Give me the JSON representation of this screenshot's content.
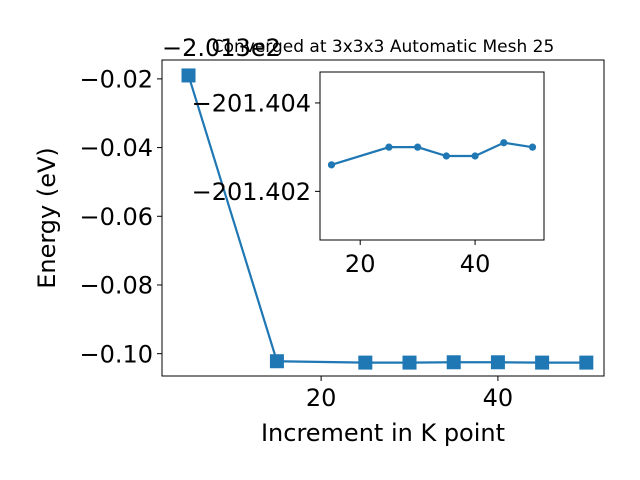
{
  "chart_data": [
    {
      "type": "line",
      "title": "Converged at 3x3x3 Automatic Mesh 25",
      "xlabel": "Increment in K point",
      "ylabel": "Energy (eV)",
      "offset_text": "−2.013e2",
      "xlim": [
        2,
        52
      ],
      "ylim": [
        -0.1065,
        -0.0145
      ],
      "xticks": [
        20,
        40
      ],
      "xtick_labels": [
        "20",
        "40"
      ],
      "yticks": [
        -0.1,
        -0.08,
        -0.06,
        -0.04,
        -0.02
      ],
      "ytick_labels": [
        "−0.10",
        "−0.08",
        "−0.06",
        "−0.04",
        "−0.02"
      ],
      "marker": "square",
      "color": "#1f77b4",
      "grid": false,
      "series": [
        {
          "x": [
            5,
            15,
            25,
            30,
            35,
            40,
            45,
            50
          ],
          "y": [
            -0.019,
            -0.1022,
            -0.1026,
            -0.1026,
            -0.1025,
            -0.1025,
            -0.1026,
            -0.1026
          ]
        }
      ]
    },
    {
      "type": "line",
      "title": "",
      "xlim": [
        13,
        52
      ],
      "ylim": [
        -201.4009,
        -201.4047
      ],
      "xticks": [
        20,
        40
      ],
      "xtick_labels": [
        "20",
        "40"
      ],
      "yticks": [
        -201.404,
        -201.402
      ],
      "ytick_labels": [
        "−201.404",
        "−201.402"
      ],
      "marker": "circle",
      "color": "#1f77b4",
      "grid": false,
      "series": [
        {
          "x": [
            15,
            25,
            30,
            35,
            40,
            45,
            50
          ],
          "y": [
            -201.4026,
            -201.403,
            -201.403,
            -201.4028,
            -201.4028,
            -201.4031,
            -201.403
          ]
        }
      ]
    }
  ]
}
